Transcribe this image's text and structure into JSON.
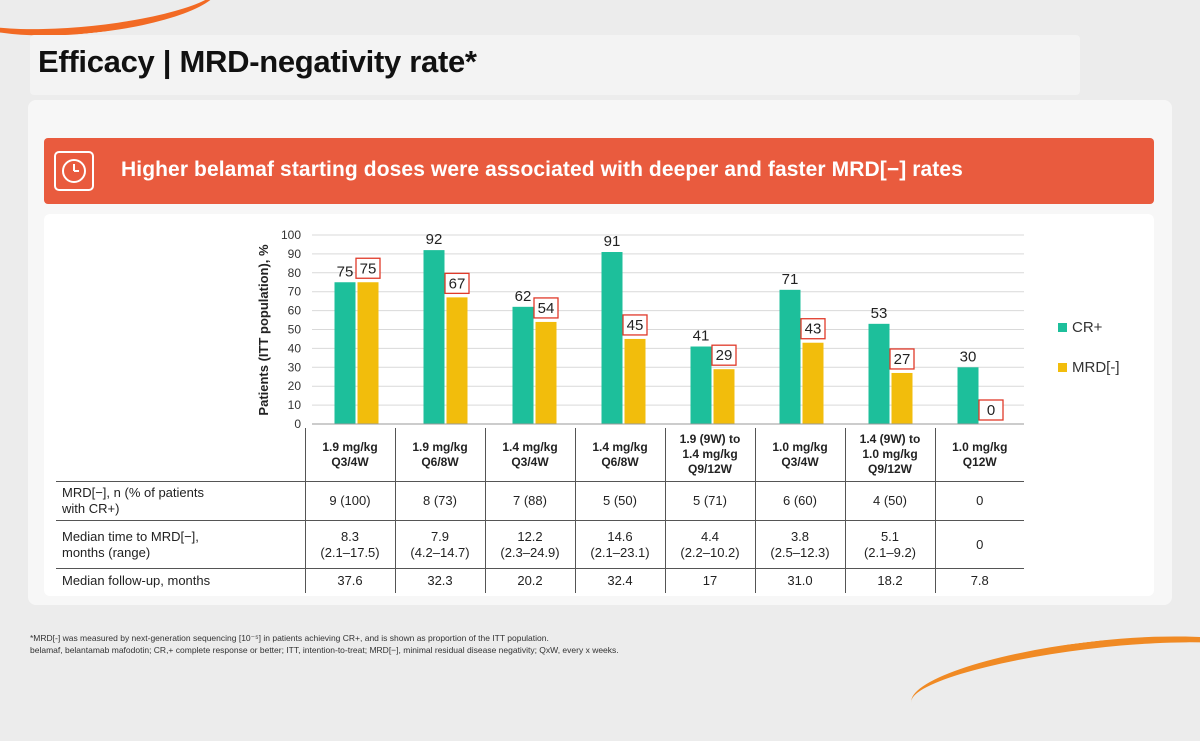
{
  "title": "Efficacy | MRD-negativity rate*",
  "banner": {
    "text": "Higher belamaf starting doses were associated with deeper and faster MRD[−] rates",
    "icon": "clock-icon"
  },
  "colors": {
    "accent": "#e95b3e",
    "cr": "#1dbf9b",
    "mrd": "#f2bd0c",
    "box": "#e03a2a"
  },
  "chart_data": {
    "type": "bar",
    "ylabel": "Patients (ITT population), %",
    "ylim": [
      0,
      100
    ],
    "yticks": [
      0,
      10,
      20,
      30,
      40,
      50,
      60,
      70,
      80,
      90,
      100
    ],
    "grid": true,
    "legend_position": "right",
    "categories": [
      [
        "1.9 mg/kg",
        "Q3/4W"
      ],
      [
        "1.9 mg/kg",
        "Q6/8W"
      ],
      [
        "1.4 mg/kg",
        "Q3/4W"
      ],
      [
        "1.4 mg/kg",
        "Q6/8W"
      ],
      [
        "1.9 (9W) to",
        "1.4 mg/kg",
        "Q9/12W"
      ],
      [
        "1.0 mg/kg",
        "Q3/4W"
      ],
      [
        "1.4 (9W) to",
        "1.0 mg/kg",
        "Q9/12W"
      ],
      [
        "1.0 mg/kg",
        "Q12W"
      ]
    ],
    "series": [
      {
        "name": "CR+",
        "values": [
          75,
          92,
          62,
          91,
          41,
          71,
          53,
          30
        ]
      },
      {
        "name": "MRD[-]",
        "values": [
          75,
          67,
          54,
          45,
          29,
          43,
          27,
          0
        ]
      }
    ]
  },
  "table": {
    "rows": [
      {
        "label": [
          "MRD[−], n (% of patients",
          "with CR+)"
        ],
        "values": [
          "9 (100)",
          "8 (73)",
          "7 (88)",
          "5 (50)",
          "5 (71)",
          "6 (60)",
          "4 (50)",
          "0"
        ]
      },
      {
        "label": [
          "Median time to MRD[−],",
          "months (range)"
        ],
        "values": [
          [
            "8.3",
            "(2.1–17.5)"
          ],
          [
            "7.9",
            "(4.2–14.7)"
          ],
          [
            "12.2",
            "(2.3–24.9)"
          ],
          [
            "14.6",
            "(2.1–23.1)"
          ],
          [
            "4.4",
            "(2.2–10.2)"
          ],
          [
            "3.8",
            "(2.5–12.3)"
          ],
          [
            "5.1",
            "(2.1–9.2)"
          ],
          [
            "0"
          ]
        ]
      },
      {
        "label": [
          "Median follow-up, months"
        ],
        "values": [
          "37.6",
          "32.3",
          "20.2",
          "32.4",
          "17",
          "31.0",
          "18.2",
          "7.8"
        ]
      }
    ]
  },
  "footnotes": [
    "*MRD[-] was measured by next-generation sequencing [10⁻⁵] in patients achieving CR+, and is shown as proportion of the ITT population.",
    "belamaf, belantamab mafodotin; CR,+ complete response or better; ITT, intention-to-treat; MRD[−], minimal residual disease negativity; QxW, every x weeks."
  ]
}
